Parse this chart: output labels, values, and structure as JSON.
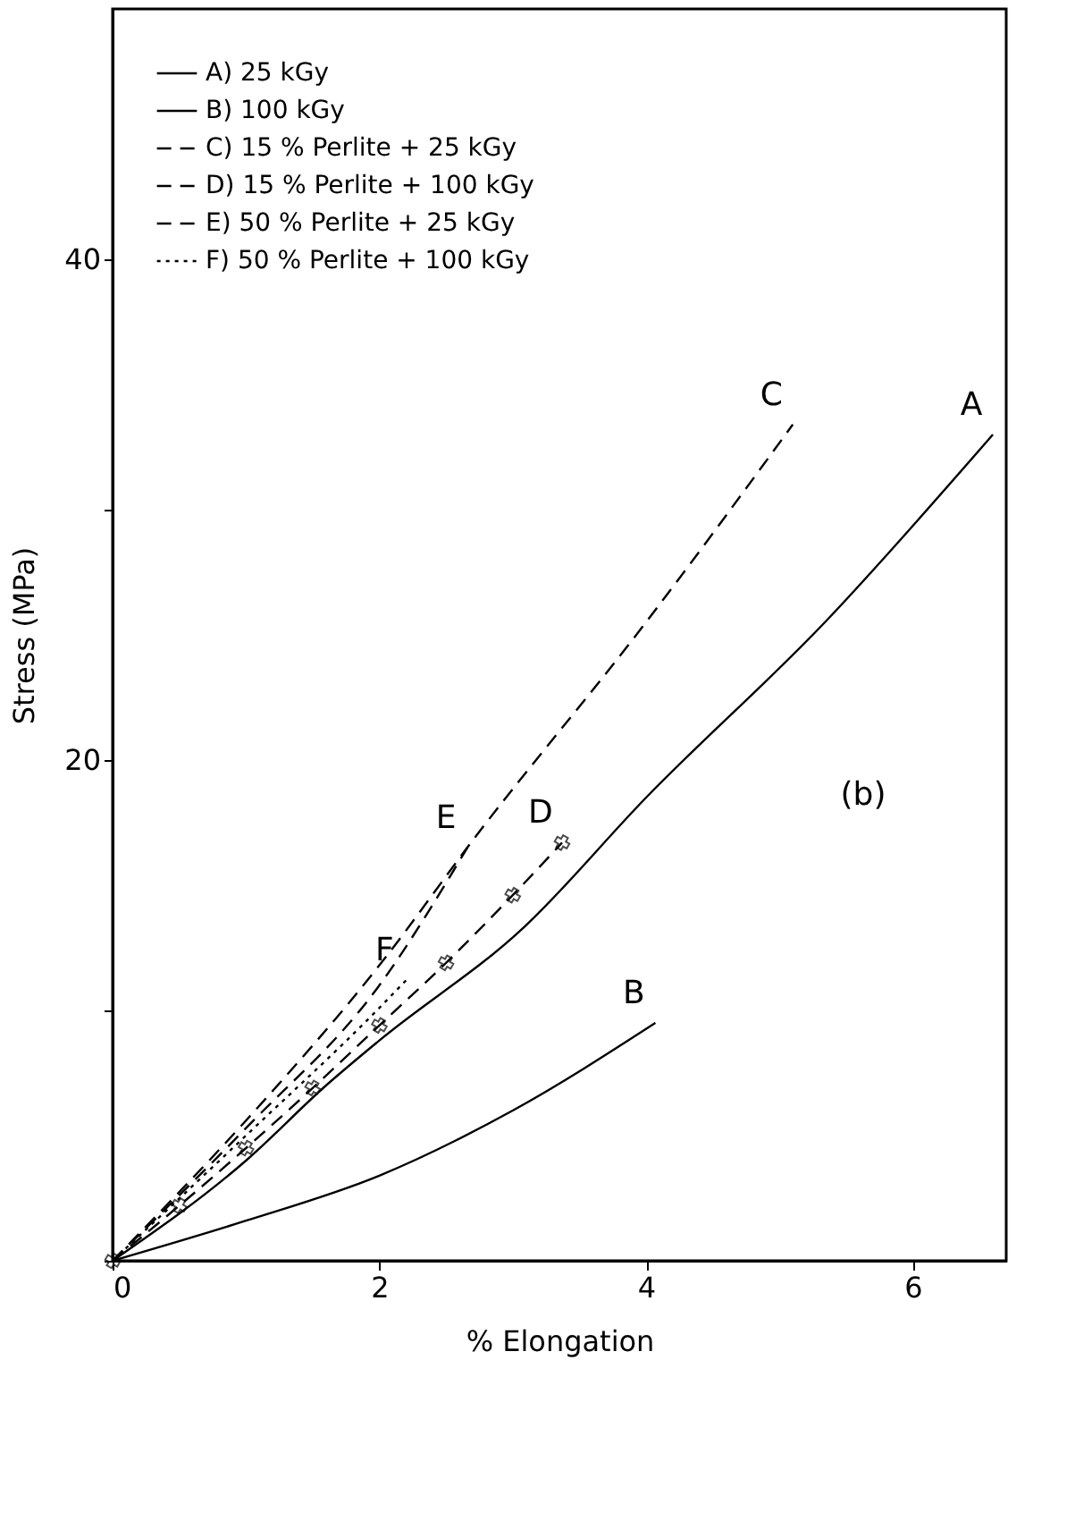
{
  "chart_data": {
    "type": "line",
    "xlabel": "% Elongation",
    "ylabel": "Stress (MPa)",
    "xlim": [
      0,
      6.7
    ],
    "ylim": [
      0,
      50
    ],
    "xticks": [
      0,
      2,
      4,
      6
    ],
    "yticks": [
      {
        "value": 0,
        "label": null
      },
      {
        "value": 10,
        "label": null
      },
      20,
      {
        "value": 30,
        "label": null
      },
      40
    ],
    "grid": false,
    "legend": "top left",
    "marker": "none",
    "series": [
      {
        "name": "A) 25 kGy",
        "color": "#000000",
        "line_style": "solid",
        "x": [
          0,
          1,
          1.6,
          2,
          3.08,
          4,
          5.34,
          6.6
        ],
        "values": [
          0,
          4,
          7,
          8.8,
          13.3,
          18.5,
          25.5,
          33
        ]
      },
      {
        "name": "B) 100 kGy",
        "color": "#000000",
        "line_style": "solid",
        "x": [
          0,
          1,
          2,
          3,
          4.07
        ],
        "values": [
          0,
          1.6,
          3.4,
          6.0,
          9.5
        ]
      },
      {
        "name": "C) 15 % Perlite + 25 kGy",
        "color": "#000000",
        "line_style": "dashed",
        "x": [
          0,
          1,
          2,
          2.73,
          3.97,
          5.1
        ],
        "values": [
          0,
          5.6,
          11.8,
          17,
          25.3,
          33.4
        ]
      },
      {
        "name": "D) 15 % Perlite + 100 kGy",
        "color": "#000000",
        "line_style": "dashed",
        "marker": "cross",
        "x": [
          0,
          0.5,
          1,
          1.5,
          2,
          2.5,
          3,
          3.37
        ],
        "values": [
          0,
          2.2,
          4.5,
          6.9,
          9.4,
          11.9,
          14.6,
          16.7
        ]
      },
      {
        "name": "E) 50 % Perlite + 25 kGy",
        "color": "#000000",
        "line_style": "dashed",
        "x": [
          0,
          1,
          2,
          2.66
        ],
        "values": [
          0,
          5.3,
          11.0,
          16.5
        ]
      },
      {
        "name": "F) 50 % Perlite + 100 kGy",
        "color": "#000000",
        "line_style": "dotted",
        "x": [
          0,
          1,
          2,
          2.2
        ],
        "values": [
          0,
          5.0,
          10.1,
          11.2
        ]
      }
    ],
    "annotations": [
      "A",
      "B",
      "C",
      "D",
      "E",
      "F",
      "(b)"
    ]
  }
}
